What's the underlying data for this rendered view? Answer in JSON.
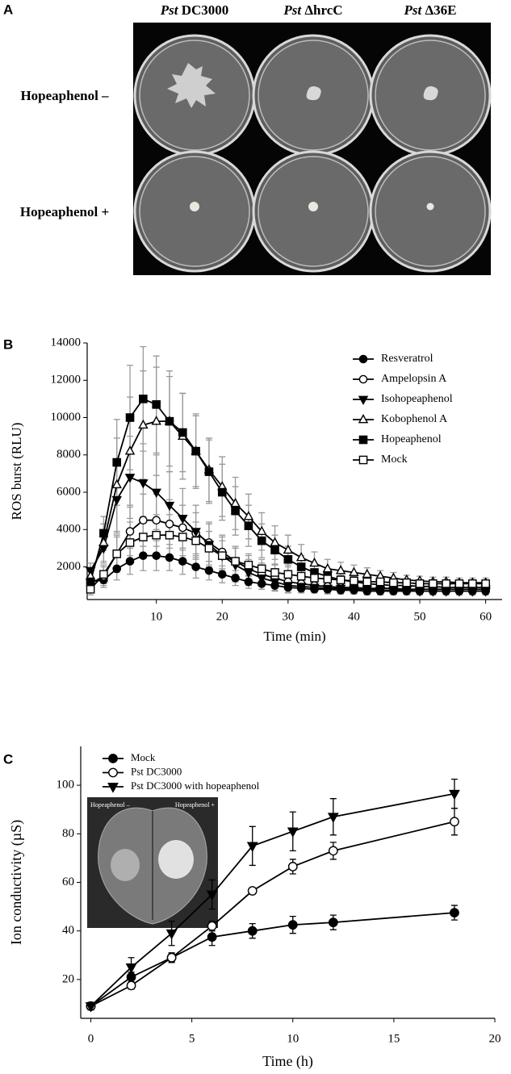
{
  "panel_a": {
    "label": "A",
    "columns": [
      {
        "strain": "Pst",
        "name": "DC3000"
      },
      {
        "strain": "Pst",
        "name": "ΔhrcC"
      },
      {
        "strain": "Pst",
        "name": "Δ36E"
      }
    ],
    "rows": [
      "Hopeaphenol –",
      "Hopeaphenol +"
    ]
  },
  "chart_data": [
    {
      "type": "line",
      "panel_label": "B",
      "ylabel": "ROS burst (RLU)",
      "xlabel": "Time (min)",
      "x": [
        0,
        2,
        4,
        6,
        8,
        10,
        12,
        14,
        16,
        18,
        20,
        22,
        24,
        26,
        28,
        30,
        32,
        34,
        36,
        38,
        40,
        42,
        44,
        46,
        48,
        50,
        52,
        54,
        56,
        58,
        60
      ],
      "xlim": [
        -0.5,
        62.5
      ],
      "xticks": [
        10,
        20,
        30,
        40,
        50,
        60
      ],
      "ylim": [
        250,
        14000
      ],
      "yticks": [
        2000,
        4000,
        6000,
        8000,
        10000,
        12000,
        14000
      ],
      "error_color": "#9a9a9a",
      "legend": "upper right",
      "series": [
        {
          "name": "Resveratrol",
          "marker": "circle",
          "filled": true,
          "color": "#000000",
          "values": [
            1200,
            1300,
            1900,
            2300,
            2600,
            2600,
            2500,
            2300,
            2000,
            1800,
            1600,
            1400,
            1200,
            1100,
            1000,
            900,
            850,
            800,
            800,
            750,
            750,
            700,
            700,
            700,
            700,
            700,
            700,
            700,
            700,
            700,
            700
          ],
          "errors": [
            300,
            400,
            600,
            700,
            800,
            800,
            700,
            700,
            600,
            500,
            450,
            400,
            350,
            300,
            250,
            250,
            200,
            200,
            200,
            200,
            200,
            200,
            200,
            200,
            200,
            200,
            200,
            200,
            200,
            200,
            200
          ]
        },
        {
          "name": "Ampelopsin A",
          "marker": "circle",
          "filled": false,
          "color": "#000000",
          "values": [
            1100,
            1500,
            2700,
            3900,
            4500,
            4500,
            4300,
            4100,
            3800,
            3300,
            2800,
            2300,
            1900,
            1600,
            1400,
            1200,
            1100,
            1000,
            950,
            900,
            900,
            850,
            850,
            850,
            800,
            800,
            800,
            800,
            800,
            800,
            800
          ],
          "errors": [
            300,
            500,
            1000,
            1300,
            1400,
            1400,
            1300,
            1200,
            1100,
            1000,
            900,
            800,
            700,
            600,
            500,
            400,
            350,
            300,
            300,
            250,
            250,
            200,
            200,
            200,
            200,
            200,
            200,
            200,
            200,
            200,
            200
          ]
        },
        {
          "name": "Isohopeaphenol",
          "marker": "triangle-down",
          "filled": true,
          "color": "#000000",
          "values": [
            1800,
            3000,
            5600,
            6800,
            6500,
            6000,
            5300,
            4600,
            3900,
            3200,
            2600,
            2100,
            1700,
            1400,
            1200,
            1000,
            950,
            900,
            850,
            850,
            800,
            800,
            750,
            750,
            750,
            700,
            700,
            700,
            700,
            700,
            700
          ],
          "errors": [
            400,
            800,
            1800,
            2200,
            2100,
            2000,
            1800,
            1600,
            1400,
            1200,
            1000,
            900,
            700,
            600,
            500,
            400,
            350,
            300,
            300,
            250,
            250,
            200,
            200,
            200,
            200,
            200,
            200,
            200,
            200,
            200,
            200
          ]
        },
        {
          "name": "Kobophenol A",
          "marker": "triangle-up",
          "filled": false,
          "color": "#000000",
          "values": [
            1500,
            3300,
            6400,
            8200,
            9600,
            9800,
            9800,
            9000,
            8200,
            7200,
            6300,
            5400,
            4700,
            3900,
            3300,
            2900,
            2500,
            2200,
            1900,
            1800,
            1700,
            1600,
            1500,
            1400,
            1300,
            1250,
            1200,
            1200,
            1150,
            1150,
            1150
          ],
          "errors": [
            400,
            1000,
            2500,
            2900,
            2900,
            2900,
            2700,
            2300,
            2000,
            1700,
            1600,
            1400,
            1200,
            1000,
            900,
            800,
            700,
            600,
            500,
            450,
            400,
            350,
            300,
            300,
            250,
            250,
            250,
            250,
            250,
            250,
            250
          ]
        },
        {
          "name": "Hopeaphenol",
          "marker": "square",
          "filled": true,
          "color": "#000000",
          "values": [
            1200,
            3800,
            7600,
            10000,
            11000,
            10700,
            9800,
            9200,
            8200,
            7100,
            6000,
            5000,
            4200,
            3400,
            2900,
            2400,
            2000,
            1700,
            1500,
            1300,
            1200,
            1100,
            1050,
            1000,
            1000,
            950,
            950,
            900,
            900,
            900,
            900
          ],
          "errors": [
            300,
            900,
            2300,
            2800,
            2800,
            2600,
            2400,
            2100,
            1900,
            1700,
            1500,
            1300,
            1100,
            900,
            800,
            700,
            600,
            500,
            400,
            350,
            300,
            300,
            250,
            250,
            200,
            200,
            200,
            200,
            200,
            200,
            200
          ]
        },
        {
          "name": "Mock",
          "marker": "square",
          "filled": false,
          "color": "#000000",
          "values": [
            800,
            1600,
            2700,
            3300,
            3600,
            3700,
            3700,
            3600,
            3400,
            3000,
            2600,
            2300,
            2100,
            1900,
            1700,
            1600,
            1500,
            1400,
            1350,
            1300,
            1250,
            1200,
            1200,
            1150,
            1150,
            1100,
            1100,
            1100,
            1100,
            1100,
            1100
          ],
          "errors": [
            300,
            500,
            900,
            1100,
            1100,
            1100,
            1100,
            1000,
            1000,
            900,
            800,
            700,
            600,
            500,
            450,
            400,
            350,
            300,
            300,
            250,
            250,
            250,
            250,
            200,
            200,
            200,
            200,
            200,
            200,
            200,
            200
          ]
        }
      ]
    },
    {
      "type": "line",
      "panel_label": "C",
      "ylabel": "Ion conductivity (µS)",
      "xlabel": "Time (h)",
      "x": [
        0,
        2,
        4,
        6,
        8,
        10,
        12,
        18
      ],
      "xlim": [
        -0.5,
        20
      ],
      "xticks": [
        0,
        5,
        10,
        15,
        20
      ],
      "ylim": [
        4,
        116
      ],
      "yticks": [
        20,
        40,
        60,
        80,
        100
      ],
      "error_color": "#000000",
      "legend": "upper left",
      "inset_labels": [
        "Hopeaphenol –",
        "Hopeaphenol +"
      ],
      "series": [
        {
          "name": "Mock",
          "marker": "circle",
          "filled": true,
          "color": "#000000",
          "values": [
            9,
            21,
            29,
            37.5,
            40,
            42.5,
            43.5,
            47.5
          ],
          "errors": [
            1.5,
            2,
            2,
            3.5,
            3,
            3.5,
            3,
            3
          ]
        },
        {
          "name": "Pst DC3000",
          "marker": "circle",
          "filled": false,
          "color": "#000000",
          "values": [
            9,
            17.5,
            29,
            42,
            56.5,
            66.5,
            73,
            85
          ],
          "errors": [
            1.5,
            1.5,
            1.5,
            2,
            1,
            3,
            3.5,
            5.5
          ]
        },
        {
          "name": "Pst DC3000 with hopeaphenol",
          "marker": "triangle-down",
          "filled": true,
          "color": "#000000",
          "values": [
            9,
            25,
            39,
            55,
            75,
            81,
            87,
            96.5
          ],
          "errors": [
            1.5,
            4,
            5,
            6,
            8,
            8,
            7.5,
            6
          ]
        }
      ]
    }
  ]
}
